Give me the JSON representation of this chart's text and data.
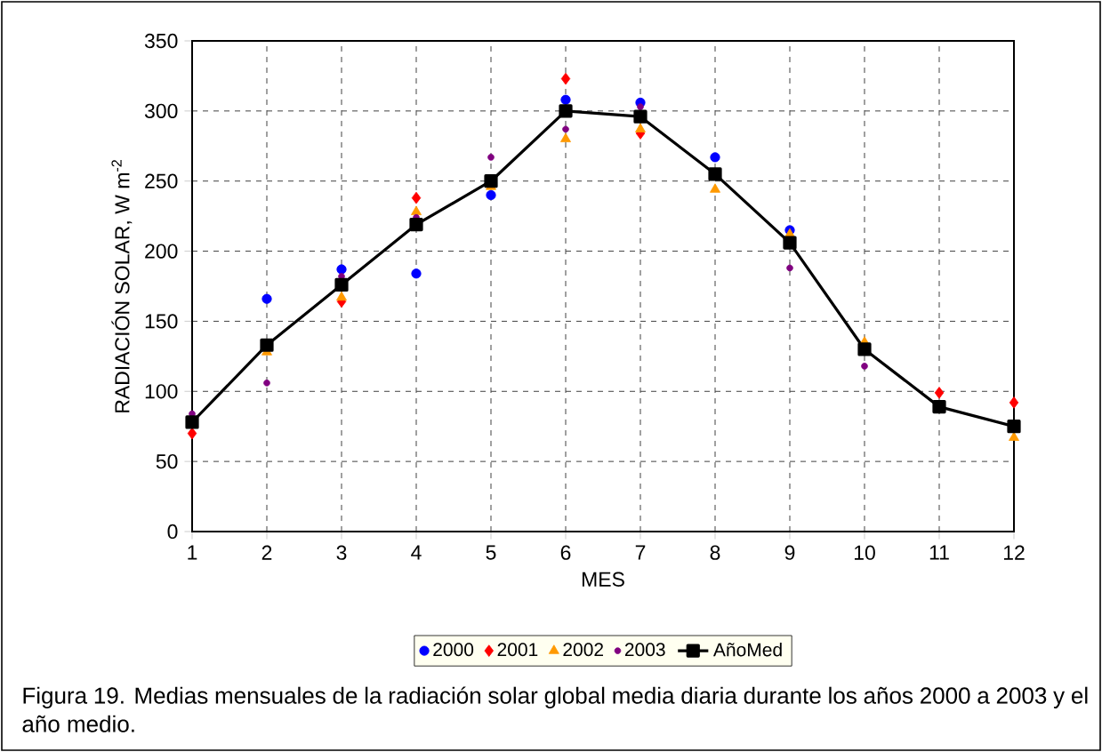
{
  "chart_data": {
    "type": "scatter",
    "xlabel": "MES",
    "ylabel": "RADIACIÓN SOLAR, W m$^{-2}$",
    "x": [
      1,
      2,
      3,
      4,
      5,
      6,
      7,
      8,
      9,
      10,
      11,
      12
    ],
    "xlim": [
      1,
      12
    ],
    "xticks": [
      1,
      2,
      3,
      4,
      5,
      6,
      7,
      8,
      9,
      10,
      11,
      12
    ],
    "ylim": [
      0,
      350
    ],
    "yticks": [
      0,
      50,
      100,
      150,
      200,
      250,
      300,
      350
    ],
    "grid": true,
    "legend": "bottom",
    "series": [
      {
        "name": "2000",
        "color": "#0000ff",
        "marker": "circle",
        "values": [
          null,
          166,
          187,
          184,
          240,
          308,
          306,
          267,
          215,
          null,
          null,
          null
        ]
      },
      {
        "name": "2001",
        "color": "#ff0000",
        "marker": "diamond",
        "values": [
          70,
          null,
          164,
          238,
          null,
          323,
          284,
          null,
          null,
          null,
          99,
          92
        ]
      },
      {
        "name": "2002",
        "color": "#ff9900",
        "marker": "triangle",
        "values": [
          null,
          128,
          167,
          228,
          246,
          280,
          287,
          244,
          212,
          135,
          null,
          67
        ]
      },
      {
        "name": "2003",
        "color": "#800080",
        "marker": "circle",
        "values": [
          84,
          106,
          182,
          224,
          267,
          287,
          303,
          null,
          188,
          118,
          null,
          null
        ]
      },
      {
        "name": "AñoMed",
        "type": "line",
        "color": "#000000",
        "marker": "square",
        "line_style": "solid",
        "values": [
          78,
          133,
          176,
          219,
          250,
          300,
          296,
          255,
          206,
          130,
          89,
          75
        ]
      }
    ],
    "annotations": [
      "Figura 19. Medias mensuales de la radiación solar global media diaria durante los años 2000 a 2003 y el año medio."
    ]
  }
}
